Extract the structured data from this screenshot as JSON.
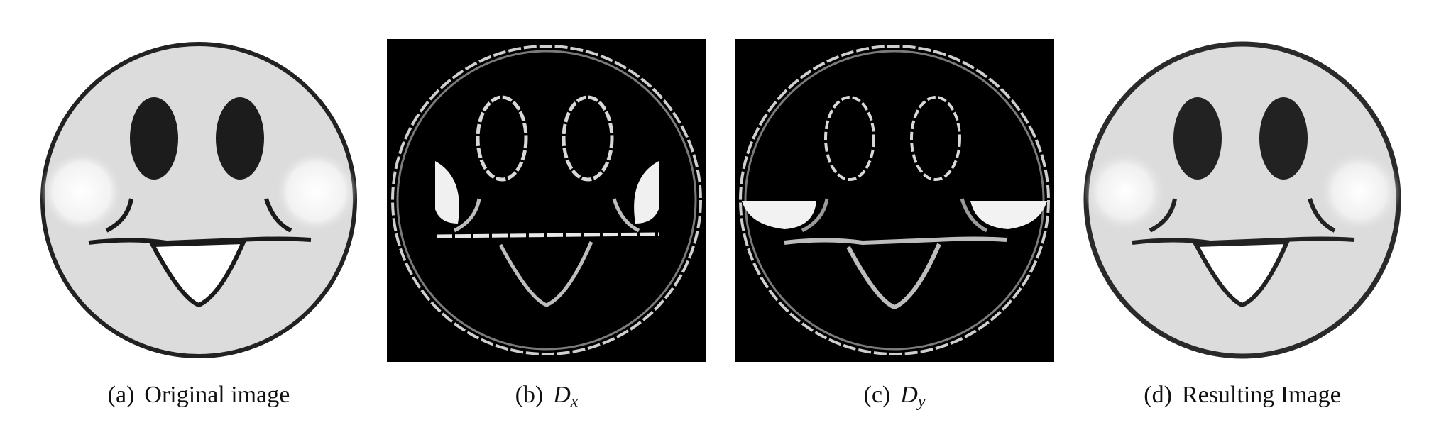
{
  "figure": {
    "panels": [
      {
        "id": "a",
        "label": "(a)",
        "caption": "Original image"
      },
      {
        "id": "b",
        "label": "(b)",
        "symbol": "D",
        "subscript": "x"
      },
      {
        "id": "c",
        "label": "(c)",
        "symbol": "D",
        "subscript": "y"
      },
      {
        "id": "d",
        "label": "(d)",
        "caption": "Resulting Image"
      }
    ]
  }
}
